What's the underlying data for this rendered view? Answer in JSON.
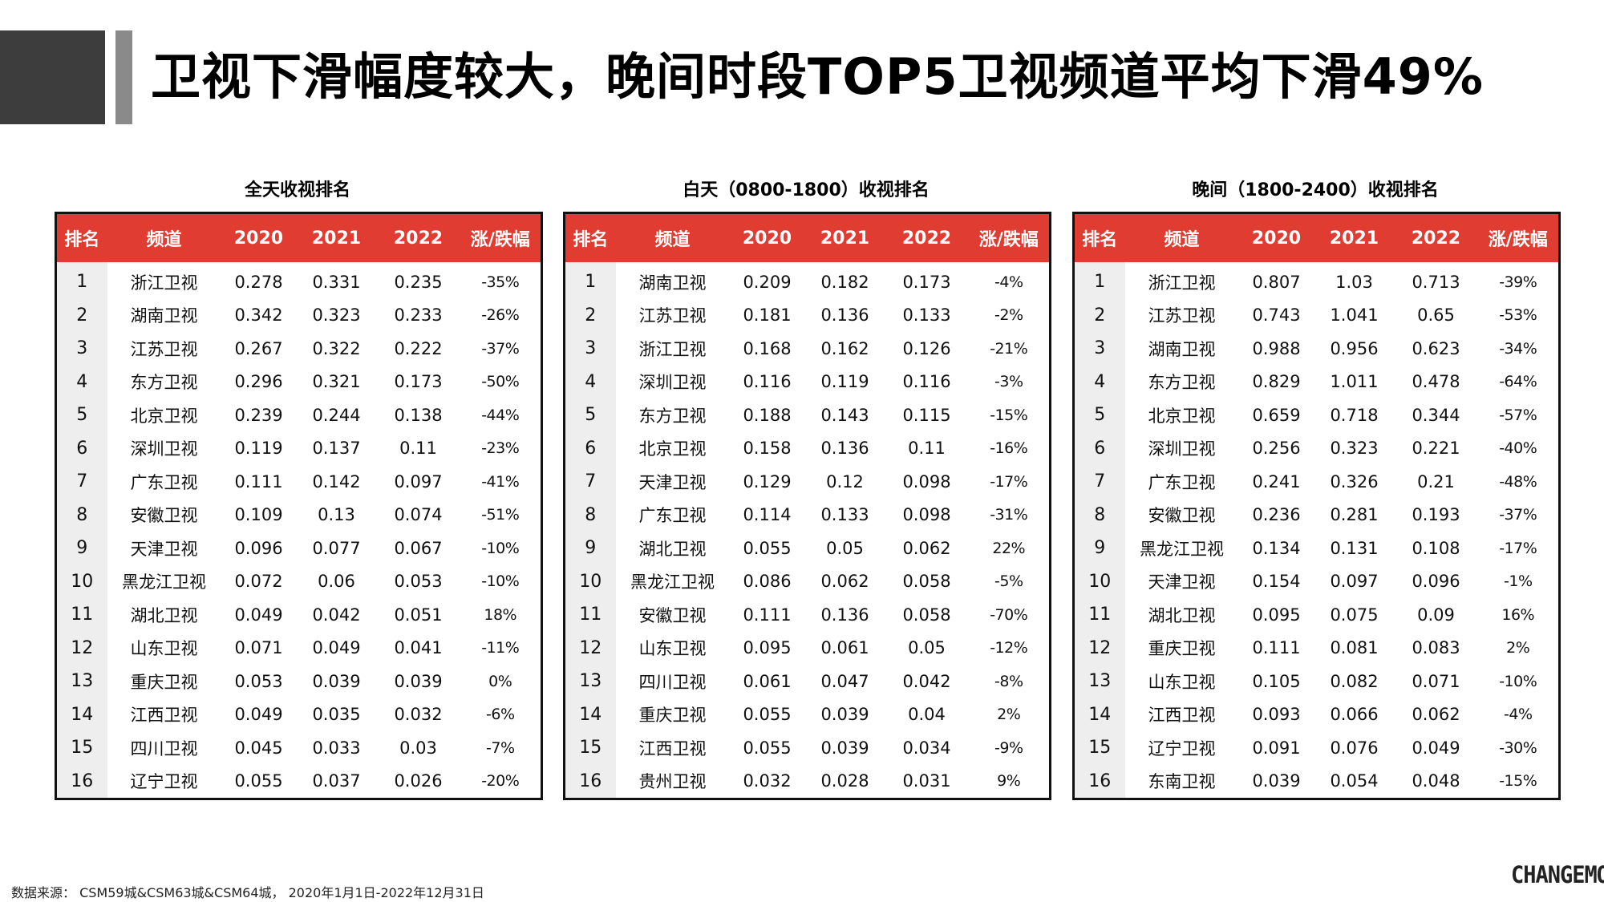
{
  "title": "卫视下滑幅度较大，晚间时段TOP5卫视频道平均下滑49%",
  "headers": [
    "排名",
    "频道",
    "2020",
    "2021",
    "2022",
    "涨/跌幅"
  ],
  "tables": [
    {
      "title": "全天收视排名",
      "rows": [
        [
          "1",
          "浙江卫视",
          "0.278",
          "0.331",
          "0.235",
          "-35%"
        ],
        [
          "2",
          "湖南卫视",
          "0.342",
          "0.323",
          "0.233",
          "-26%"
        ],
        [
          "3",
          "江苏卫视",
          "0.267",
          "0.322",
          "0.222",
          "-37%"
        ],
        [
          "4",
          "东方卫视",
          "0.296",
          "0.321",
          "0.173",
          "-50%"
        ],
        [
          "5",
          "北京卫视",
          "0.239",
          "0.244",
          "0.138",
          "-44%"
        ],
        [
          "6",
          "深圳卫视",
          "0.119",
          "0.137",
          "0.11",
          "-23%"
        ],
        [
          "7",
          "广东卫视",
          "0.111",
          "0.142",
          "0.097",
          "-41%"
        ],
        [
          "8",
          "安徽卫视",
          "0.109",
          "0.13",
          "0.074",
          "-51%"
        ],
        [
          "9",
          "天津卫视",
          "0.096",
          "0.077",
          "0.067",
          "-10%"
        ],
        [
          "10",
          "黑龙江卫视",
          "0.072",
          "0.06",
          "0.053",
          "-10%"
        ],
        [
          "11",
          "湖北卫视",
          "0.049",
          "0.042",
          "0.051",
          "18%"
        ],
        [
          "12",
          "山东卫视",
          "0.071",
          "0.049",
          "0.041",
          "-11%"
        ],
        [
          "13",
          "重庆卫视",
          "0.053",
          "0.039",
          "0.039",
          "0%"
        ],
        [
          "14",
          "江西卫视",
          "0.049",
          "0.035",
          "0.032",
          "-6%"
        ],
        [
          "15",
          "四川卫视",
          "0.045",
          "0.033",
          "0.03",
          "-7%"
        ],
        [
          "16",
          "辽宁卫视",
          "0.055",
          "0.037",
          "0.026",
          "-20%"
        ]
      ]
    },
    {
      "title": "白天（0800-1800）收视排名",
      "rows": [
        [
          "1",
          "湖南卫视",
          "0.209",
          "0.182",
          "0.173",
          "-4%"
        ],
        [
          "2",
          "江苏卫视",
          "0.181",
          "0.136",
          "0.133",
          "-2%"
        ],
        [
          "3",
          "浙江卫视",
          "0.168",
          "0.162",
          "0.126",
          "-21%"
        ],
        [
          "4",
          "深圳卫视",
          "0.116",
          "0.119",
          "0.116",
          "-3%"
        ],
        [
          "5",
          "东方卫视",
          "0.188",
          "0.143",
          "0.115",
          "-15%"
        ],
        [
          "6",
          "北京卫视",
          "0.158",
          "0.136",
          "0.11",
          "-16%"
        ],
        [
          "7",
          "天津卫视",
          "0.129",
          "0.12",
          "0.098",
          "-17%"
        ],
        [
          "8",
          "广东卫视",
          "0.114",
          "0.133",
          "0.098",
          "-31%"
        ],
        [
          "9",
          "湖北卫视",
          "0.055",
          "0.05",
          "0.062",
          "22%"
        ],
        [
          "10",
          "黑龙江卫视",
          "0.086",
          "0.062",
          "0.058",
          "-5%"
        ],
        [
          "11",
          "安徽卫视",
          "0.111",
          "0.136",
          "0.058",
          "-70%"
        ],
        [
          "12",
          "山东卫视",
          "0.095",
          "0.061",
          "0.05",
          "-12%"
        ],
        [
          "13",
          "四川卫视",
          "0.061",
          "0.047",
          "0.042",
          "-8%"
        ],
        [
          "14",
          "重庆卫视",
          "0.055",
          "0.039",
          "0.04",
          "2%"
        ],
        [
          "15",
          "江西卫视",
          "0.055",
          "0.039",
          "0.034",
          "-9%"
        ],
        [
          "16",
          "贵州卫视",
          "0.032",
          "0.028",
          "0.031",
          "9%"
        ]
      ]
    },
    {
      "title": "晚间（1800-2400）收视排名",
      "rows": [
        [
          "1",
          "浙江卫视",
          "0.807",
          "1.03",
          "0.713",
          "-39%"
        ],
        [
          "2",
          "江苏卫视",
          "0.743",
          "1.041",
          "0.65",
          "-53%"
        ],
        [
          "3",
          "湖南卫视",
          "0.988",
          "0.956",
          "0.623",
          "-34%"
        ],
        [
          "4",
          "东方卫视",
          "0.829",
          "1.011",
          "0.478",
          "-64%"
        ],
        [
          "5",
          "北京卫视",
          "0.659",
          "0.718",
          "0.344",
          "-57%"
        ],
        [
          "6",
          "深圳卫视",
          "0.256",
          "0.323",
          "0.221",
          "-40%"
        ],
        [
          "7",
          "广东卫视",
          "0.241",
          "0.326",
          "0.21",
          "-48%"
        ],
        [
          "8",
          "安徽卫视",
          "0.236",
          "0.281",
          "0.193",
          "-37%"
        ],
        [
          "9",
          "黑龙江卫视",
          "0.134",
          "0.131",
          "0.108",
          "-17%"
        ],
        [
          "10",
          "天津卫视",
          "0.154",
          "0.097",
          "0.096",
          "-1%"
        ],
        [
          "11",
          "湖北卫视",
          "0.095",
          "0.075",
          "0.09",
          "16%"
        ],
        [
          "12",
          "重庆卫视",
          "0.111",
          "0.081",
          "0.083",
          "2%"
        ],
        [
          "13",
          "山东卫视",
          "0.105",
          "0.082",
          "0.071",
          "-10%"
        ],
        [
          "14",
          "江西卫视",
          "0.093",
          "0.066",
          "0.062",
          "-4%"
        ],
        [
          "15",
          "辽宁卫视",
          "0.091",
          "0.076",
          "0.049",
          "-30%"
        ],
        [
          "16",
          "东南卫视",
          "0.039",
          "0.054",
          "0.048",
          "-15%"
        ]
      ]
    }
  ],
  "footer": {
    "source": "数据来源：  CSM59城&CSM63城&CSM64城， 2020年1月1日-2022年12月31日",
    "logo": "CHANGEMO"
  }
}
